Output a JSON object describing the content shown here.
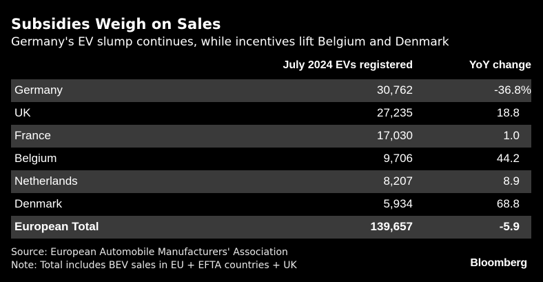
{
  "title": "Subsidies Weigh on Sales",
  "subtitle": "Germany's EV slump continues, while incentives lift Belgium and Denmark",
  "chart_data": {
    "type": "table",
    "title": "Subsidies Weigh on Sales",
    "subtitle": "Germany's EV slump continues, while incentives lift Belgium and Denmark",
    "columns": [
      "",
      "July 2024 EVs registered",
      "YoY change"
    ],
    "rows": [
      {
        "country": "Germany",
        "registered": "30,762",
        "change": "-36.8%"
      },
      {
        "country": "UK",
        "registered": "27,235",
        "change": "18.8"
      },
      {
        "country": "France",
        "registered": "17,030",
        "change": "1.0"
      },
      {
        "country": "Belgium",
        "registered": "9,706",
        "change": "44.2"
      },
      {
        "country": "Netherlands",
        "registered": "8,207",
        "change": "8.9"
      },
      {
        "country": "Denmark",
        "registered": "5,934",
        "change": "68.8"
      }
    ],
    "total": {
      "country": "European Total",
      "registered": "139,657",
      "change": "-5.9"
    }
  },
  "footer": {
    "source": "Source: European Automobile Manufacturers' Association",
    "note": "Note: Total includes BEV sales in EU + EFTA countries + UK"
  },
  "brand": "Bloomberg",
  "colors": {
    "background": "#000000",
    "row_shade": "#3a3a3a",
    "text": "#ffffff"
  }
}
